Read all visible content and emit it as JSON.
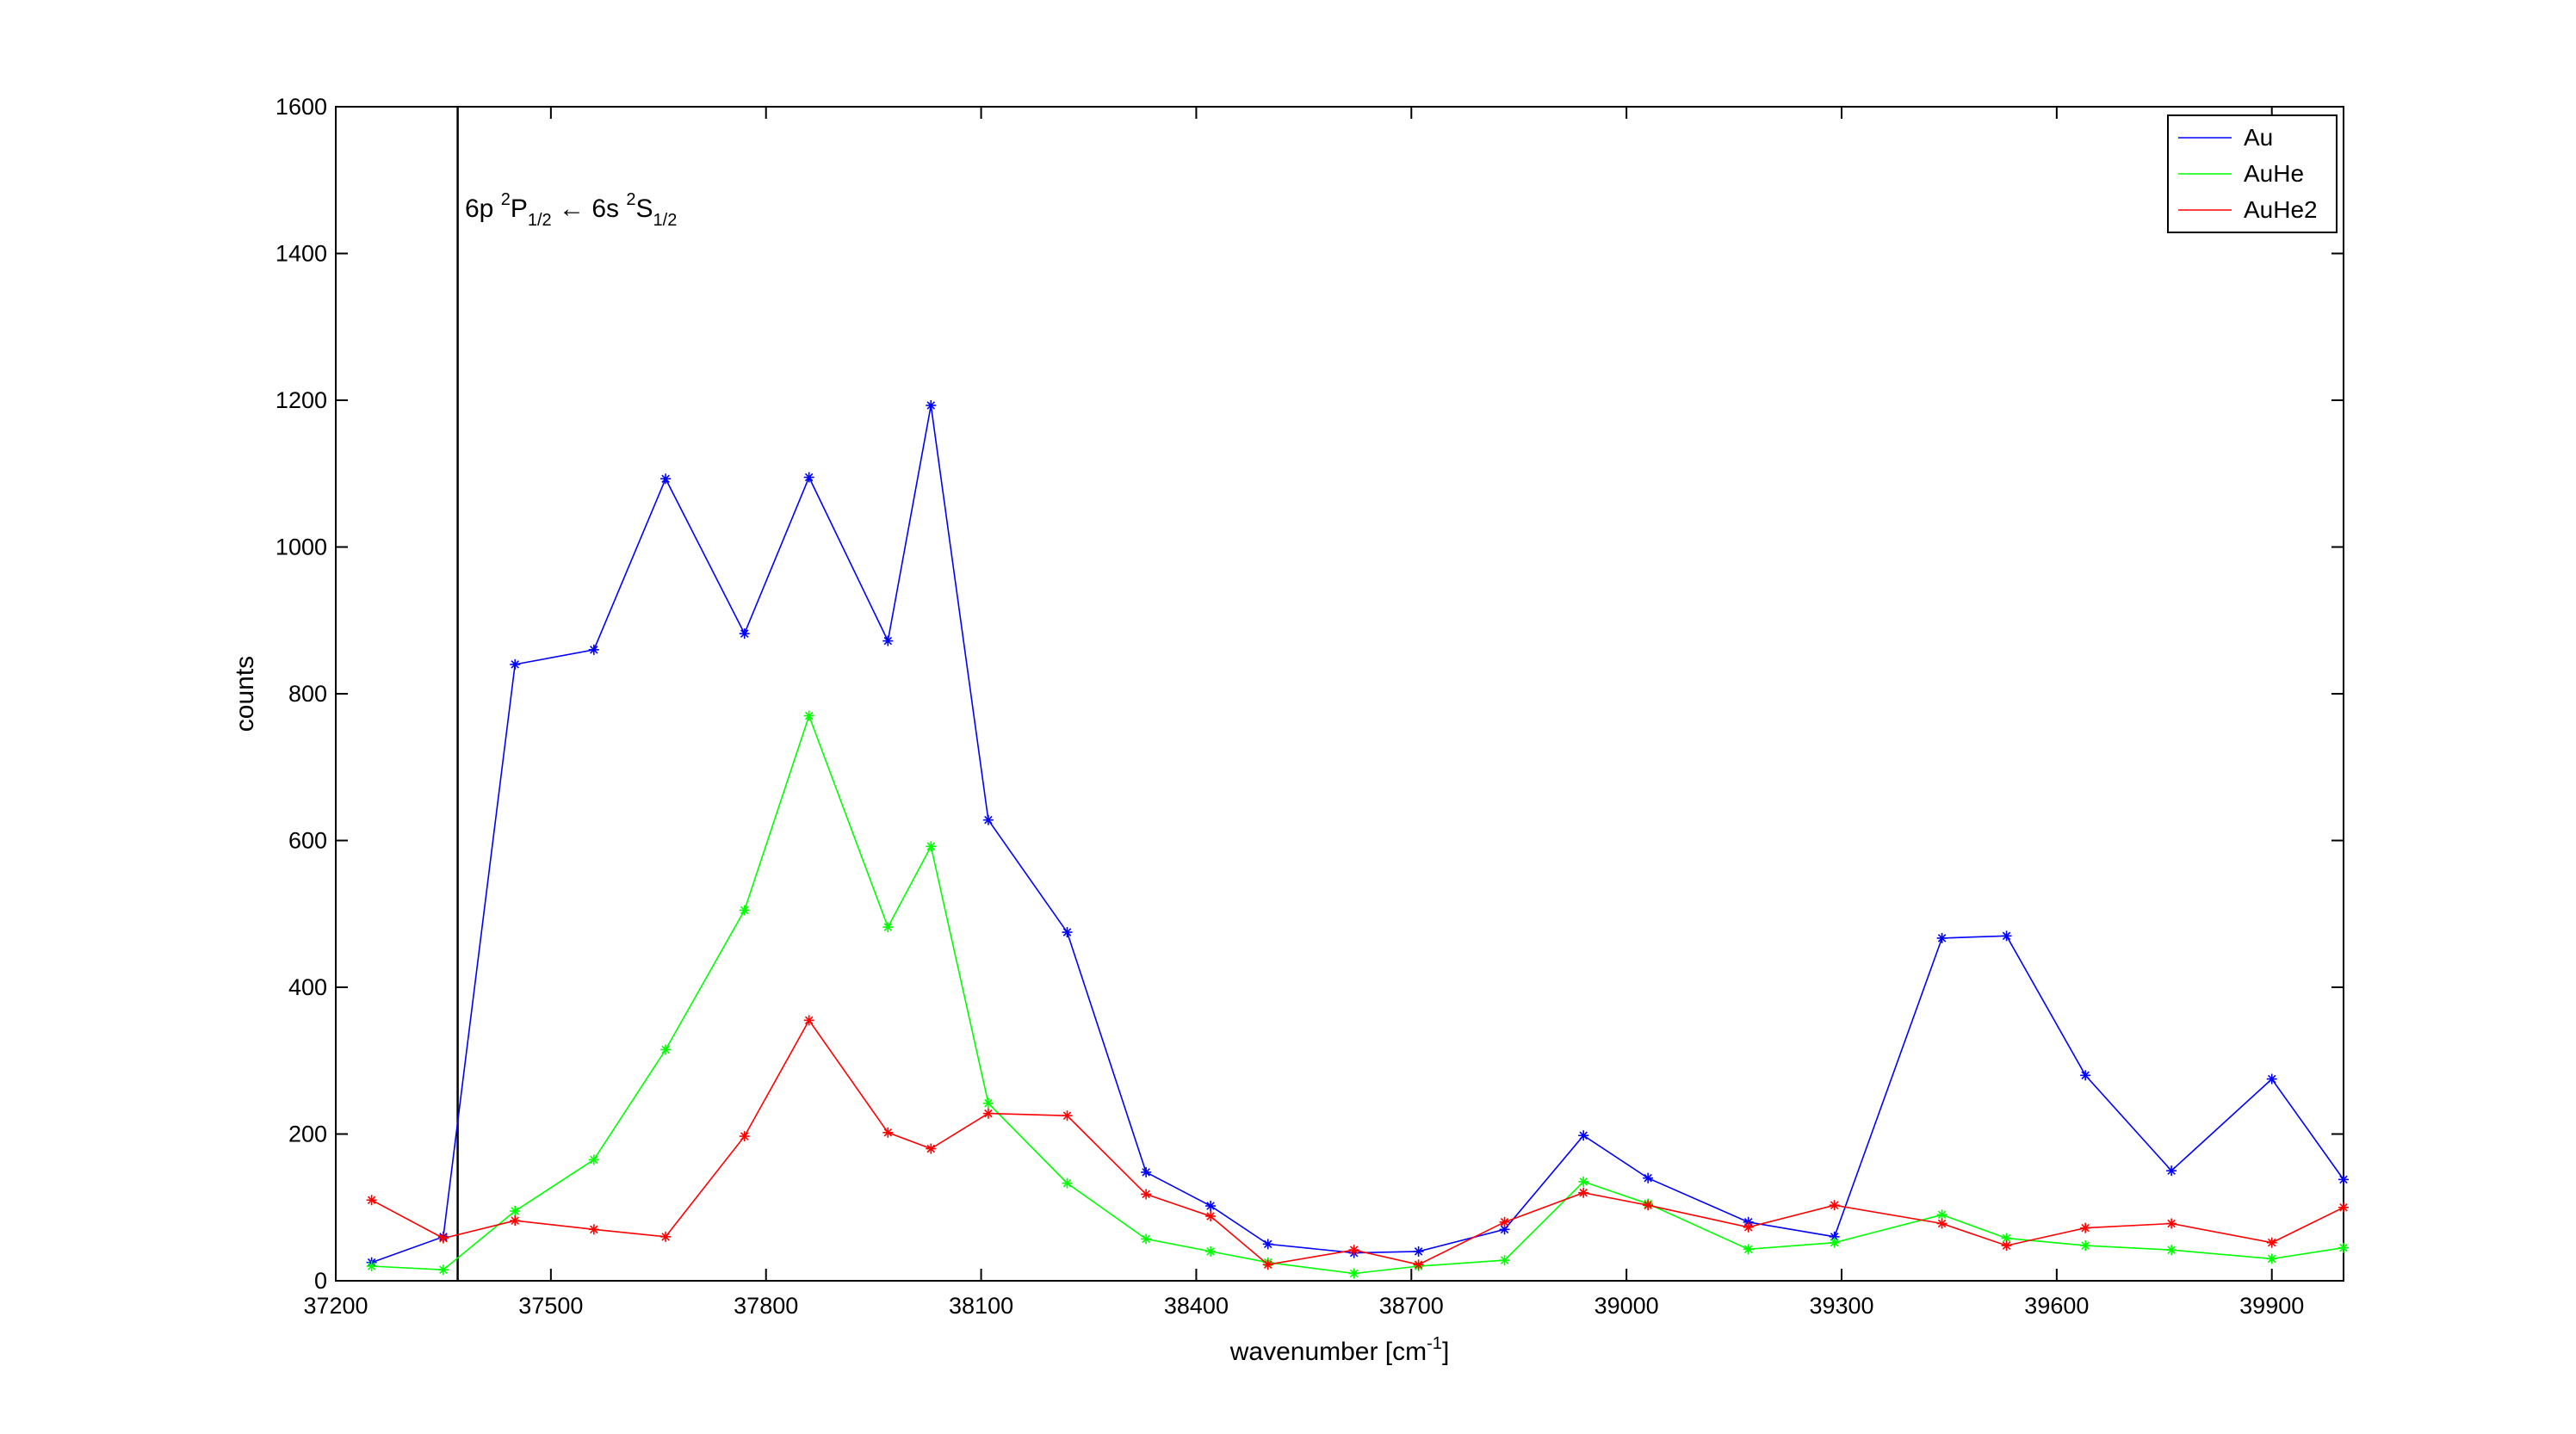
{
  "chart_data": {
    "type": "line",
    "title": "",
    "xlabel": "wavenumber [cm",
    "xlabel_sup": "-1",
    "xlabel_end": "]",
    "ylabel": "counts",
    "xlim": [
      37200,
      40000
    ],
    "ylim": [
      0,
      1600
    ],
    "xticks": [
      37200,
      37500,
      37800,
      38100,
      38400,
      38700,
      39000,
      39300,
      39600,
      39900
    ],
    "yticks": [
      0,
      200,
      400,
      600,
      800,
      1000,
      1200,
      1400,
      1600
    ],
    "grid": false,
    "legend": "top-right",
    "marker": "asterisk",
    "vline": {
      "x": 37370,
      "label": {
        "p1": "6p ",
        "sup1": "2",
        "p2": "P",
        "sub1": "1/2",
        "p3": " ← 6s ",
        "sup2": "2",
        "p4": "S",
        "sub2": "1/2"
      }
    },
    "x": [
      37250,
      37350,
      37450,
      37560,
      37660,
      37770,
      37860,
      37970,
      38030,
      38110,
      38220,
      38330,
      38420,
      38500,
      38620,
      38710,
      38830,
      38940,
      39030,
      39170,
      39290,
      39440,
      39530,
      39640,
      39760,
      39900,
      40000
    ],
    "series": [
      {
        "name": "Au",
        "color": "#0000ff",
        "values": [
          25,
          60,
          840,
          860,
          1093,
          882,
          1095,
          872,
          1193,
          628,
          475,
          148,
          102,
          50,
          38,
          40,
          70,
          198,
          140,
          80,
          60,
          467,
          470,
          280,
          150,
          275,
          138
        ]
      },
      {
        "name": "AuHe",
        "color": "#00ff00",
        "values": [
          20,
          15,
          95,
          165,
          315,
          505,
          770,
          482,
          592,
          242,
          133,
          57,
          40,
          25,
          10,
          20,
          28,
          135,
          105,
          43,
          52,
          90,
          58,
          48,
          42,
          30,
          45
        ]
      },
      {
        "name": "AuHe2",
        "color": "#ff0000",
        "values": [
          110,
          58,
          82,
          70,
          60,
          197,
          355,
          202,
          180,
          228,
          225,
          118,
          88,
          22,
          42,
          22,
          80,
          120,
          103,
          73,
          103,
          78,
          48,
          72,
          78,
          52,
          100
        ]
      }
    ]
  }
}
